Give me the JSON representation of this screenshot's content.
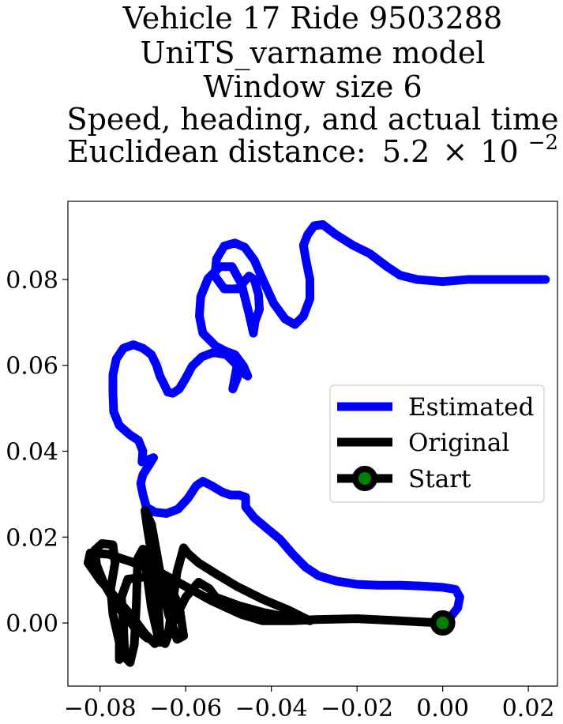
{
  "chart_data": {
    "type": "line",
    "title_lines": [
      "Vehicle 17 Ride 9503288",
      "UniTS_varname model",
      "Window size 6",
      "Speed, heading, and actual time"
    ],
    "distance_label": "Euclidean distance:",
    "distance_mantissa": "5.2",
    "distance_times": "×",
    "distance_base": "10",
    "distance_exponent": "−2",
    "xlabel": "",
    "ylabel": "",
    "xlim": [
      -0.0875,
      0.0268
    ],
    "ylim": [
      -0.0147,
      0.0982
    ],
    "x_ticks": [
      -0.08,
      -0.06,
      -0.04,
      -0.02,
      0.0,
      0.02
    ],
    "x_tick_labels": [
      "−0.08",
      "−0.06",
      "−0.04",
      "−0.02",
      "0.00",
      "0.02"
    ],
    "y_ticks": [
      0.0,
      0.02,
      0.04,
      0.06,
      0.08
    ],
    "y_tick_labels": [
      "0.00",
      "0.02",
      "0.04",
      "0.06",
      "0.08"
    ],
    "grid": false,
    "legend_position": "center-right",
    "series": [
      {
        "name": "Estimated",
        "color": "#0000ff",
        "points": [
          [
            0.024,
            0.08
          ],
          [
            0.018,
            0.08
          ],
          [
            0.012,
            0.08
          ],
          [
            0.006,
            0.08
          ],
          [
            0.0,
            0.0795
          ],
          [
            -0.006,
            0.08
          ],
          [
            -0.01,
            0.081
          ],
          [
            -0.013,
            0.083
          ],
          [
            -0.017,
            0.086
          ],
          [
            -0.021,
            0.088
          ],
          [
            -0.025,
            0.0905
          ],
          [
            -0.028,
            0.0928
          ],
          [
            -0.03,
            0.0925
          ],
          [
            -0.0315,
            0.0905
          ],
          [
            -0.0325,
            0.088
          ],
          [
            -0.032,
            0.085
          ],
          [
            -0.031,
            0.08
          ],
          [
            -0.031,
            0.0755
          ],
          [
            -0.0325,
            0.0715
          ],
          [
            -0.0345,
            0.0695
          ],
          [
            -0.0368,
            0.0708
          ],
          [
            -0.0395,
            0.0745
          ],
          [
            -0.042,
            0.08
          ],
          [
            -0.044,
            0.0845
          ],
          [
            -0.0462,
            0.0875
          ],
          [
            -0.0485,
            0.0885
          ],
          [
            -0.051,
            0.0878
          ],
          [
            -0.0528,
            0.0848
          ],
          [
            -0.0532,
            0.0808
          ],
          [
            -0.051,
            0.0778
          ],
          [
            -0.0478,
            0.0778
          ],
          [
            -0.0452,
            0.0808
          ],
          [
            -0.044,
            0.08
          ],
          [
            -0.043,
            0.0765
          ],
          [
            -0.0428,
            0.073
          ],
          [
            -0.0438,
            0.0702
          ],
          [
            -0.0442,
            0.0675
          ],
          [
            -0.0452,
            0.072
          ],
          [
            -0.047,
            0.079
          ],
          [
            -0.0492,
            0.083
          ],
          [
            -0.052,
            0.083
          ],
          [
            -0.0548,
            0.0802
          ],
          [
            -0.0565,
            0.076
          ],
          [
            -0.0568,
            0.0715
          ],
          [
            -0.056,
            0.0675
          ],
          [
            -0.053,
            0.0645
          ],
          [
            -0.0505,
            0.0632
          ],
          [
            -0.0485,
            0.0625
          ],
          [
            -0.0465,
            0.0598
          ],
          [
            -0.0455,
            0.0575
          ],
          [
            -0.0475,
            0.0588
          ],
          [
            -0.048,
            0.057
          ],
          [
            -0.049,
            0.0545
          ],
          [
            -0.048,
            0.06
          ],
          [
            -0.0505,
            0.0625
          ],
          [
            -0.0535,
            0.063
          ],
          [
            -0.0562,
            0.062
          ],
          [
            -0.0585,
            0.0598
          ],
          [
            -0.06,
            0.057
          ],
          [
            -0.0615,
            0.0545
          ],
          [
            -0.063,
            0.0535
          ],
          [
            -0.0642,
            0.0538
          ],
          [
            -0.065,
            0.0555
          ],
          [
            -0.066,
            0.0575
          ],
          [
            -0.0668,
            0.06
          ],
          [
            -0.068,
            0.0625
          ],
          [
            -0.07,
            0.064
          ],
          [
            -0.0722,
            0.0648
          ],
          [
            -0.0745,
            0.064
          ],
          [
            -0.0762,
            0.0615
          ],
          [
            -0.077,
            0.0578
          ],
          [
            -0.077,
            0.0535
          ],
          [
            -0.0768,
            0.0492
          ],
          [
            -0.0755,
            0.046
          ],
          [
            -0.073,
            0.0438
          ],
          [
            -0.071,
            0.0425
          ],
          [
            -0.07,
            0.04
          ],
          [
            -0.0702,
            0.0375
          ],
          [
            -0.0675,
            0.0385
          ],
          [
            -0.07,
            0.0345
          ],
          [
            -0.0705,
            0.0325
          ],
          [
            -0.07,
            0.03
          ],
          [
            -0.0692,
            0.027
          ],
          [
            -0.0672,
            0.0258
          ],
          [
            -0.0645,
            0.0255
          ],
          [
            -0.0618,
            0.0265
          ],
          [
            -0.0595,
            0.029
          ],
          [
            -0.0575,
            0.032
          ],
          [
            -0.056,
            0.033
          ],
          [
            -0.054,
            0.032
          ],
          [
            -0.0515,
            0.0305
          ],
          [
            -0.0495,
            0.0298
          ],
          [
            -0.0475,
            0.0298
          ],
          [
            -0.046,
            0.0293
          ],
          [
            -0.046,
            0.027
          ],
          [
            -0.044,
            0.0245
          ],
          [
            -0.041,
            0.022
          ],
          [
            -0.038,
            0.0195
          ],
          [
            -0.035,
            0.016
          ],
          [
            -0.032,
            0.013
          ],
          [
            -0.029,
            0.011
          ],
          [
            -0.025,
            0.0098
          ],
          [
            -0.02,
            0.009
          ],
          [
            -0.015,
            0.0088
          ],
          [
            -0.01,
            0.0088
          ],
          [
            -0.005,
            0.0086
          ],
          [
            0.0,
            0.0083
          ],
          [
            0.003,
            0.0078
          ],
          [
            0.004,
            0.006
          ],
          [
            0.0035,
            0.0035
          ],
          [
            0.0015,
            0.001
          ],
          [
            0.0,
            0.0
          ]
        ]
      },
      {
        "name": "Original",
        "color": "#000000",
        "points": [
          [
            0.0,
            0.0
          ],
          [
            -0.01,
            0.0005
          ],
          [
            -0.02,
            0.001
          ],
          [
            -0.03,
            0.0008
          ],
          [
            -0.035,
            0.0005
          ],
          [
            -0.042,
            0.0005
          ],
          [
            -0.047,
            0.002
          ],
          [
            -0.054,
            0.0052
          ],
          [
            -0.06,
            0.0085
          ],
          [
            -0.066,
            0.0118
          ],
          [
            -0.072,
            0.014
          ],
          [
            -0.078,
            0.016
          ],
          [
            -0.0823,
            0.0163
          ],
          [
            -0.0828,
            0.014
          ],
          [
            -0.08,
            0.01
          ],
          [
            -0.076,
            0.0055
          ],
          [
            -0.0725,
            0.0015
          ],
          [
            -0.0695,
            -0.0025
          ],
          [
            -0.0672,
            -0.0048
          ],
          [
            -0.066,
            -0.003
          ],
          [
            -0.0665,
            0.006
          ],
          [
            -0.0678,
            0.015
          ],
          [
            -0.069,
            0.0225
          ],
          [
            -0.0695,
            0.0262
          ],
          [
            -0.068,
            0.023
          ],
          [
            -0.066,
            0.012
          ],
          [
            -0.064,
            0.002
          ],
          [
            -0.062,
            -0.0038
          ],
          [
            -0.0605,
            -0.003
          ],
          [
            -0.0615,
            0.004
          ],
          [
            -0.0645,
            0.01
          ],
          [
            -0.069,
            0.0108
          ],
          [
            -0.0735,
            0.0102
          ],
          [
            -0.075,
            0.006
          ],
          [
            -0.0745,
            -0.001
          ],
          [
            -0.0742,
            -0.008
          ],
          [
            -0.073,
            -0.0092
          ],
          [
            -0.072,
            -0.005
          ],
          [
            -0.0715,
            0.005
          ],
          [
            -0.0712,
            0.015
          ],
          [
            -0.07,
            0.0172
          ],
          [
            -0.069,
            0.011
          ],
          [
            -0.068,
            0.0035
          ],
          [
            -0.0665,
            -0.003
          ],
          [
            -0.0648,
            -0.0048
          ],
          [
            -0.063,
            0.0
          ],
          [
            -0.06,
            0.006
          ],
          [
            -0.057,
            0.0095
          ],
          [
            -0.0545,
            0.008
          ],
          [
            -0.053,
            0.006
          ],
          [
            -0.0475,
            0.004
          ],
          [
            -0.042,
            0.0025
          ],
          [
            -0.037,
            0.0015
          ],
          [
            -0.033,
            0.001
          ],
          [
            -0.031,
            0.0005
          ],
          [
            -0.036,
            0.003
          ],
          [
            -0.042,
            0.0055
          ],
          [
            -0.048,
            0.0085
          ],
          [
            -0.053,
            0.0115
          ],
          [
            -0.057,
            0.014
          ],
          [
            -0.0595,
            0.0162
          ],
          [
            -0.0605,
            0.0175
          ],
          [
            -0.062,
            0.012
          ],
          [
            -0.063,
            0.005
          ],
          [
            -0.064,
            -0.002
          ],
          [
            -0.066,
            -0.0045
          ],
          [
            -0.069,
            -0.0035
          ],
          [
            -0.072,
            -0.001
          ],
          [
            -0.076,
            0.004
          ],
          [
            -0.079,
            0.009
          ],
          [
            -0.0808,
            0.0135
          ],
          [
            -0.0812,
            0.017
          ],
          [
            -0.0795,
            0.0185
          ],
          [
            -0.077,
            0.0182
          ],
          [
            -0.0765,
            0.014
          ],
          [
            -0.0775,
            0.008
          ],
          [
            -0.077,
            0.002
          ],
          [
            -0.0755,
            -0.0045
          ],
          [
            -0.0755,
            -0.0085
          ]
        ]
      }
    ],
    "start_marker": {
      "name": "Start",
      "x": 0.0,
      "y": 0.0,
      "edge_color": "#000000",
      "face_color": "#008000"
    }
  }
}
